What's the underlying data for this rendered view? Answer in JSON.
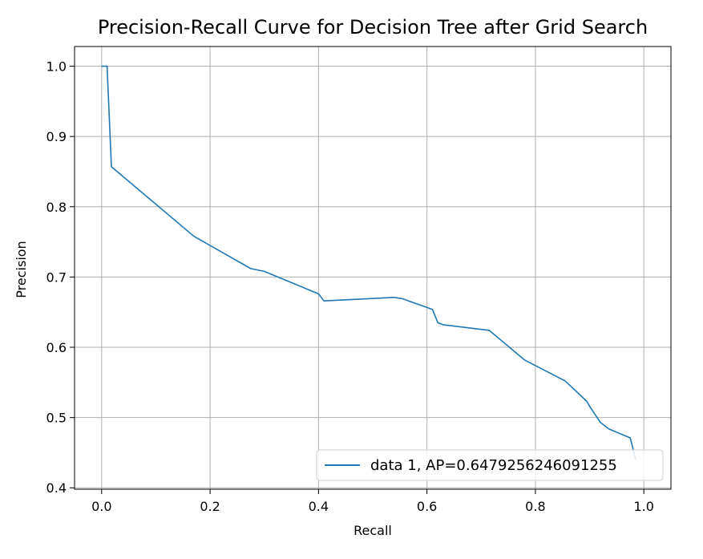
{
  "chart_data": {
    "type": "line",
    "title": "Precision-Recall Curve for Decision Tree after Grid Search",
    "xlabel": "Recall",
    "ylabel": "Precision",
    "xlim": [
      -0.05,
      1.05
    ],
    "ylim": [
      0.398,
      1.028
    ],
    "xticks": [
      0.0,
      0.2,
      0.4,
      0.6,
      0.8,
      1.0
    ],
    "xtick_labels": [
      "0.0",
      "0.2",
      "0.4",
      "0.6",
      "0.8",
      "1.0"
    ],
    "yticks": [
      0.4,
      0.5,
      0.6,
      0.7,
      0.8,
      0.9,
      1.0
    ],
    "ytick_labels": [
      "0.4",
      "0.5",
      "0.6",
      "0.7",
      "0.8",
      "0.9",
      "1.0"
    ],
    "grid": true,
    "legend_position": "lower-right",
    "line_color": "#1f77b4",
    "series": [
      {
        "name": "data 1, AP=0.6479256246091255",
        "x": [
          0.0,
          0.01,
          0.018,
          0.17,
          0.275,
          0.3,
          0.4,
          0.41,
          0.54,
          0.555,
          0.61,
          0.62,
          0.63,
          0.715,
          0.78,
          0.855,
          0.895,
          0.9,
          0.92,
          0.935,
          0.975,
          0.985
        ],
        "y": [
          1.0,
          1.0,
          0.857,
          0.758,
          0.712,
          0.708,
          0.676,
          0.666,
          0.671,
          0.669,
          0.654,
          0.635,
          0.632,
          0.624,
          0.582,
          0.552,
          0.523,
          0.516,
          0.493,
          0.484,
          0.471,
          0.44
        ]
      }
    ]
  }
}
